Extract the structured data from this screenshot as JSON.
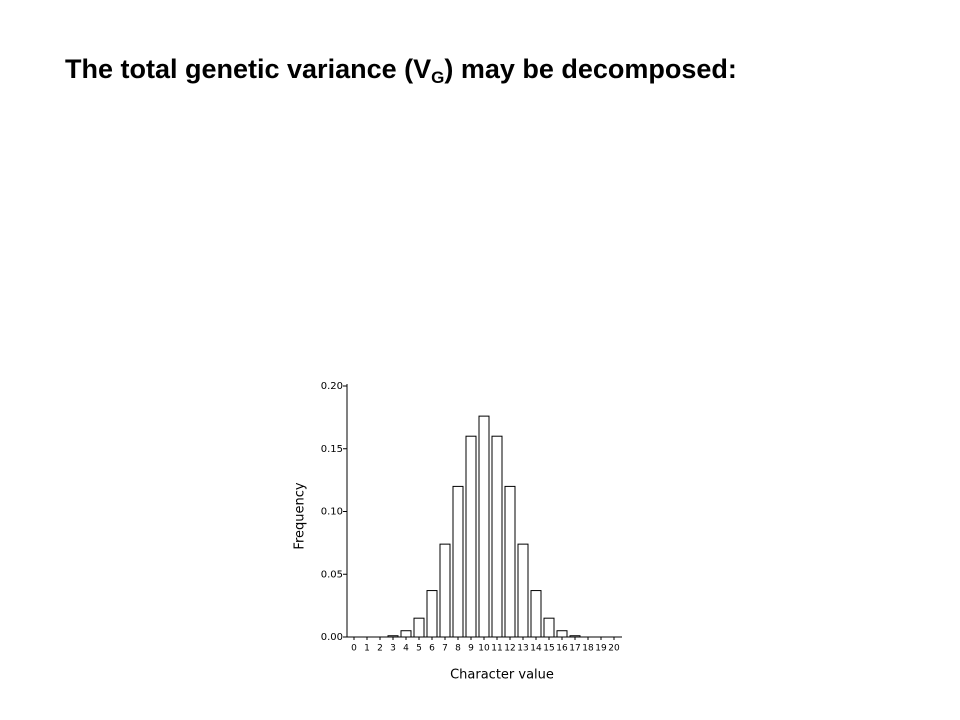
{
  "slide": {
    "title": [
      "The total genetic variance (V",
      "G",
      ") may be decomposed:"
    ]
  },
  "chart_data": {
    "type": "bar",
    "xlabel": "Character value",
    "ylabel": "Frequency",
    "categories": [
      "0",
      "1",
      "2",
      "3",
      "4",
      "5",
      "6",
      "7",
      "8",
      "9",
      "10",
      "11",
      "12",
      "13",
      "14",
      "15",
      "16",
      "17",
      "18",
      "19",
      "20"
    ],
    "values": [
      0,
      0,
      0,
      0.001,
      0.005,
      0.015,
      0.037,
      0.074,
      0.12,
      0.16,
      0.176,
      0.16,
      0.12,
      0.074,
      0.037,
      0.015,
      0.005,
      0.001,
      0,
      0,
      0
    ],
    "color": "#ffffff",
    "ylim": [
      0,
      0.2
    ],
    "yticks": [
      {
        "value": 0,
        "label": "0.00"
      },
      {
        "value": 0.05,
        "label": "0.05"
      },
      {
        "value": 0.1,
        "label": "0.10"
      },
      {
        "value": 0.15,
        "label": "0.15"
      },
      {
        "value": 0.2,
        "label": "0.20"
      }
    ]
  }
}
